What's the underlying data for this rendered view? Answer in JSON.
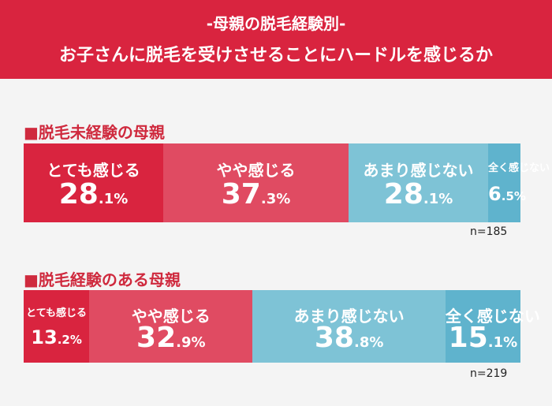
{
  "header": {
    "line1": "-母親の脱毛経験別-",
    "line2": "お子さんに脱毛を受けさせることにハードルを感じるか"
  },
  "colors": {
    "header": "#d9243f",
    "very": "#d9243f",
    "somewhat": "#e04b62",
    "not_much": "#7ec3d6",
    "not_at_all": "#5fb3cd",
    "title": "#cf2a3e"
  },
  "chart_data": {
    "type": "bar",
    "stacked": true,
    "orientation": "horizontal",
    "unit": "%",
    "categories": [
      "とても感じる",
      "やや感じる",
      "あまり感じない",
      "全く感じない"
    ],
    "series": [
      {
        "name": "■脱毛未経験の母親",
        "values": [
          28.1,
          37.3,
          28.1,
          6.5
        ],
        "labels": [
          "28.1%",
          "37.3%",
          "28.1%",
          "6.5%"
        ],
        "n": "n=185"
      },
      {
        "name": "■脱毛経験のある母親",
        "values": [
          13.2,
          32.9,
          38.8,
          15.1
        ],
        "labels": [
          "13.2%",
          "32.9%",
          "38.8%",
          "15.1%"
        ],
        "n": "n=219"
      }
    ]
  }
}
